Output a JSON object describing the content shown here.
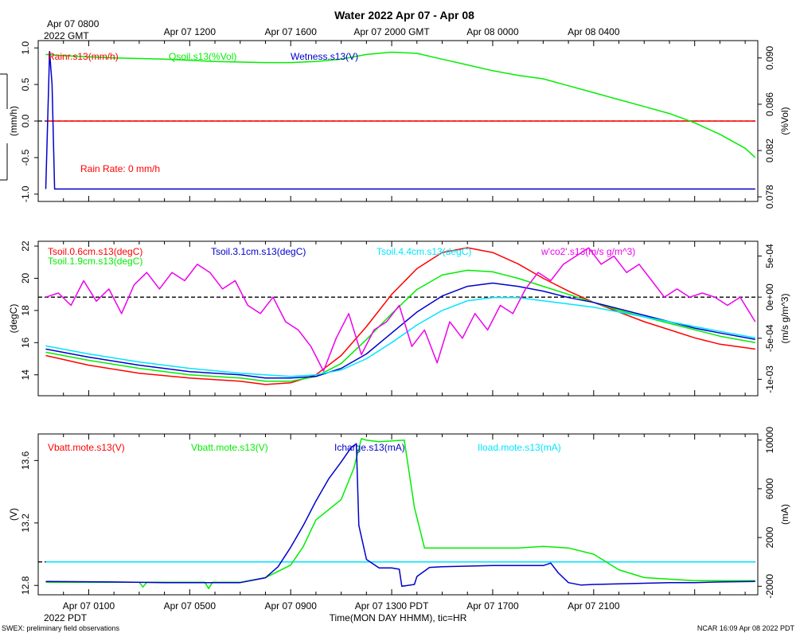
{
  "title": "Water 2022 Apr 07 - Apr 08",
  "top_axis": {
    "first_label_line1": "Apr 07 0800",
    "first_label_line2": "2022 GMT",
    "labels": [
      "Apr 07 1200",
      "Apr 07 1600",
      "Apr 07 2000 GMT",
      "Apr 08 0000",
      "Apr 08 0400"
    ]
  },
  "bottom_axis": {
    "labels": [
      "Apr 07 0100",
      "Apr 07 0500",
      "Apr 07 0900",
      "Apr 07 1300 PDT",
      "Apr 07 1700",
      "Apr 07 2100"
    ],
    "sub_label": "2022 PDT",
    "xlabel": "Time(MON DAY HHMM), tic=HR"
  },
  "footer": {
    "left": "SWEX: preliminary field observations",
    "right": "NCAR 16:09 Apr 08 2022 PDT"
  },
  "colors": {
    "red": "#ff0000",
    "green": "#00ee00",
    "blue": "#0000cc",
    "cyan": "#00e5ff",
    "magenta": "#ee00ee",
    "black": "#000000"
  },
  "chart_data": [
    {
      "type": "line",
      "name": "panel-water",
      "x_unit": "hours since Apr 07 0000 PDT",
      "xlim": [
        -1,
        27.5
      ],
      "left_axis": {
        "label": "(mm/h)",
        "ylim": [
          -1.1,
          1.1
        ],
        "ticks": [
          "1.0",
          "0.5",
          "0.0",
          "-0.5",
          "-1.0"
        ],
        "tick_values": [
          1.0,
          0.5,
          0.0,
          -0.5,
          -1.0
        ]
      },
      "right_axis": {
        "label": "(%Vol)",
        "ylim": [
          0.0776,
          0.0915
        ],
        "ticks": [
          "0.090",
          "0.086",
          "0.082",
          "0.078"
        ],
        "tick_values": [
          0.09,
          0.086,
          0.082,
          0.078
        ]
      },
      "legend": [
        "Rainr.s13(mm/h)",
        "Qsoil.s13(%Vol)",
        "Wetness.s13(V)"
      ],
      "annotation": "Rain Rate: 0 mm/h",
      "reference_line": {
        "axis": "left",
        "value": 0.0,
        "style": "dashed"
      },
      "series": [
        {
          "name": "Rainr.s13(mm/h)",
          "color": "red",
          "axis": "left",
          "x": [
            -0.7,
            27.4
          ],
          "y": [
            0.0,
            0.0
          ]
        },
        {
          "name": "Qsoil.s13(%Vol)",
          "color": "green",
          "axis": "right",
          "x": [
            -0.7,
            0,
            2,
            4,
            6,
            8,
            9,
            10,
            11,
            12,
            13,
            14,
            15,
            16,
            17,
            18,
            19,
            20,
            21,
            22,
            23,
            24,
            25,
            26,
            27,
            27.4
          ],
          "y": [
            0.0903,
            0.0902,
            0.09,
            0.0899,
            0.0897,
            0.0896,
            0.0896,
            0.0897,
            0.0899,
            0.0903,
            0.0905,
            0.0904,
            0.0899,
            0.0894,
            0.0889,
            0.0885,
            0.0882,
            0.0876,
            0.087,
            0.0864,
            0.0858,
            0.0852,
            0.0844,
            0.0834,
            0.0822,
            0.0814
          ]
        },
        {
          "name": "Wetness.s13(V)",
          "color": "blue",
          "axis": "left",
          "x": [
            -0.7,
            -0.55,
            -0.45,
            -0.35,
            0,
            27.4
          ],
          "y": [
            -0.93,
            0.95,
            0.5,
            -0.93,
            -0.93,
            -0.93
          ]
        }
      ]
    },
    {
      "type": "line",
      "name": "panel-temperature",
      "x_unit": "hours since Apr 07 0000 PDT",
      "xlim": [
        -1,
        27.5
      ],
      "left_axis": {
        "label": "(degC)",
        "ylim": [
          12.7,
          22.3
        ],
        "ticks": [
          "22",
          "20",
          "18",
          "16",
          "14"
        ],
        "tick_values": [
          22,
          20,
          18,
          16,
          14
        ]
      },
      "right_axis": {
        "label": "(m/s g/m^3)",
        "ylim": [
          -0.0012,
          0.00068
        ],
        "ticks": [
          "5e-04",
          "0e+00",
          "-5e-04",
          "-1e-03"
        ],
        "tick_values": [
          0.0005,
          0.0,
          -0.0005,
          -0.001
        ]
      },
      "legend": [
        "Tsoil.0.6cm.s13(degC)",
        "Tsoil.1.9cm.s13(degC)",
        "Tsoil.3.1cm.s13(degC)",
        "Tsoil.4.4cm.s13(degC)",
        "w'co2'.s13(m/s g/m^3)"
      ],
      "reference_line": {
        "axis": "right",
        "value": 0.0,
        "style": "dashed"
      },
      "series": [
        {
          "name": "Tsoil.0.6cm.s13(degC)",
          "color": "red",
          "axis": "left",
          "x": [
            -0.7,
            1,
            3,
            5,
            7,
            8,
            9,
            10,
            11,
            12,
            13,
            14,
            15,
            16,
            17,
            18,
            19,
            20,
            21,
            22,
            23,
            24,
            25,
            26,
            27.4
          ],
          "y": [
            15.2,
            14.6,
            14.1,
            13.8,
            13.6,
            13.4,
            13.5,
            14.0,
            15.2,
            17.0,
            19.0,
            20.6,
            21.6,
            21.9,
            21.6,
            20.9,
            20.0,
            19.2,
            18.5,
            17.9,
            17.3,
            16.8,
            16.3,
            15.9,
            15.6
          ]
        },
        {
          "name": "Tsoil.1.9cm.s13(degC)",
          "color": "green",
          "axis": "left",
          "x": [
            -0.7,
            1,
            3,
            5,
            7,
            8,
            9,
            10,
            11,
            12,
            13,
            14,
            15,
            16,
            17,
            18,
            19,
            20,
            21,
            22,
            23,
            24,
            25,
            26,
            27.4
          ],
          "y": [
            15.4,
            14.9,
            14.4,
            14.0,
            13.8,
            13.6,
            13.6,
            13.9,
            14.7,
            16.2,
            17.8,
            19.3,
            20.2,
            20.5,
            20.4,
            20.0,
            19.5,
            19.0,
            18.5,
            18.0,
            17.6,
            17.2,
            16.8,
            16.4,
            16.0
          ]
        },
        {
          "name": "Tsoil.3.1cm.s13(degC)",
          "color": "blue",
          "axis": "left",
          "x": [
            -0.7,
            1,
            3,
            5,
            7,
            8,
            9,
            10,
            11,
            12,
            13,
            14,
            15,
            16,
            17,
            18,
            19,
            20,
            21,
            22,
            23,
            24,
            25,
            26,
            27.4
          ],
          "y": [
            15.6,
            15.1,
            14.6,
            14.2,
            14.0,
            13.8,
            13.8,
            13.9,
            14.4,
            15.3,
            16.6,
            17.9,
            18.9,
            19.5,
            19.7,
            19.5,
            19.2,
            18.8,
            18.5,
            18.1,
            17.7,
            17.3,
            16.9,
            16.6,
            16.2
          ]
        },
        {
          "name": "Tsoil.4.4cm.s13(degC)",
          "color": "cyan",
          "axis": "left",
          "x": [
            -0.7,
            1,
            3,
            5,
            7,
            8,
            9,
            10,
            11,
            12,
            13,
            14,
            15,
            16,
            17,
            18,
            19,
            20,
            21,
            22,
            23,
            24,
            25,
            26,
            27.4
          ],
          "y": [
            15.8,
            15.3,
            14.8,
            14.4,
            14.1,
            14.0,
            13.9,
            14.0,
            14.3,
            15.0,
            16.0,
            17.1,
            18.0,
            18.6,
            18.8,
            18.8,
            18.6,
            18.4,
            18.2,
            17.9,
            17.6,
            17.3,
            17.0,
            16.7,
            16.3
          ]
        },
        {
          "name": "w'co2'.s13(m/s g/m^3)",
          "color": "magenta",
          "axis": "right",
          "x": [
            -0.7,
            -0.2,
            0.3,
            0.8,
            1.3,
            1.8,
            2.3,
            2.8,
            3.3,
            3.8,
            4.3,
            4.8,
            5.3,
            5.8,
            6.3,
            6.8,
            7.3,
            7.8,
            8.3,
            8.8,
            9.3,
            9.8,
            10.3,
            10.8,
            11.3,
            11.8,
            12.3,
            12.8,
            13.3,
            13.8,
            14.3,
            14.8,
            15.3,
            15.8,
            16.3,
            16.8,
            17.3,
            17.8,
            18.3,
            18.8,
            19.3,
            19.8,
            20.3,
            20.8,
            21.3,
            21.8,
            22.3,
            22.8,
            23.3,
            23.8,
            24.3,
            24.8,
            25.3,
            25.8,
            26.3,
            26.8,
            27.4
          ],
          "y": [
            0.0,
            5e-05,
            -0.0001,
            0.0002,
            -5e-05,
            0.0001,
            -0.0002,
            0.00015,
            0.0003,
            0.0001,
            0.0003,
            0.0002,
            0.0004,
            0.0003,
            0.0001,
            0.0002,
            -0.0001,
            -0.0002,
            0.0,
            -0.0003,
            -0.0004,
            -0.0006,
            -0.0009,
            -0.0005,
            -0.0002,
            -0.0007,
            -0.0004,
            -0.0003,
            -0.0001,
            -0.0006,
            -0.0004,
            -0.0008,
            -0.0003,
            -0.0005,
            -0.0002,
            -0.0004,
            -0.0001,
            -0.0002,
            0.0001,
            0.0003,
            0.0002,
            0.0004,
            0.0005,
            0.0006,
            0.0004,
            0.0005,
            0.0003,
            0.0004,
            0.0002,
            0.0,
            0.0001,
            0.0,
            5e-05,
            0.0,
            -0.0001,
            0.0,
            -0.0003
          ]
        }
      ]
    },
    {
      "type": "line",
      "name": "panel-power",
      "x_unit": "hours since Apr 07 0000 PDT",
      "xlim": [
        -1,
        27.5
      ],
      "left_axis": {
        "label": "(V)",
        "ylim": [
          12.74,
          13.77
        ],
        "ticks": [
          "13.6",
          "13.2",
          "12.8"
        ],
        "tick_values": [
          13.6,
          13.2,
          12.8
        ]
      },
      "right_axis": {
        "label": "(mA)",
        "ylim": [
          -2700,
          10500
        ],
        "ticks": [
          "10000",
          "6000",
          "2000",
          "-2000"
        ],
        "tick_values": [
          10000,
          6000,
          2000,
          -2000
        ]
      },
      "legend": [
        "Vbatt.mote.s13(V)",
        "Vbatt.mote.s13(V)",
        "Icharge.s13(mA)",
        "Iload.mote.s13(mA)"
      ],
      "reference_line": {
        "axis": "right",
        "value": 0,
        "style": "dashed"
      },
      "series": [
        {
          "name": "Iload.mote.s13(mA)",
          "color": "cyan",
          "axis": "right",
          "x": [
            -0.7,
            27.4
          ],
          "y": [
            0,
            0
          ]
        },
        {
          "name": "Vbatt.mote.s13(V)",
          "color": "green",
          "axis": "left",
          "x": [
            -0.7,
            2,
            3,
            3.15,
            3.3,
            5,
            5.6,
            5.75,
            5.9,
            7,
            8,
            9,
            9.5,
            10,
            11,
            11.5,
            11.8,
            12,
            12.5,
            13.5,
            13.9,
            14.3,
            15,
            15.9,
            16.5,
            17,
            18,
            19,
            20,
            21,
            22,
            23,
            24,
            25,
            26,
            27.4
          ],
          "y": [
            12.82,
            12.82,
            12.82,
            12.79,
            12.82,
            12.82,
            12.82,
            12.78,
            12.82,
            12.82,
            12.85,
            12.93,
            13.05,
            13.22,
            13.35,
            13.55,
            13.74,
            13.73,
            13.72,
            13.73,
            13.3,
            13.04,
            13.04,
            13.04,
            13.04,
            13.04,
            13.04,
            13.05,
            13.04,
            13.0,
            12.9,
            12.85,
            12.84,
            12.83,
            12.83,
            12.83
          ]
        },
        {
          "name": "Icharge.s13(mA)",
          "color": "blue",
          "axis": "right",
          "x": [
            -0.7,
            2,
            4,
            6,
            7,
            8,
            8.5,
            9,
            9.5,
            10,
            10.5,
            11,
            11.4,
            11.6,
            11.7,
            12.0,
            12.5,
            13.0,
            13.3,
            13.4,
            13.9,
            14.0,
            14.5,
            15,
            16,
            17,
            18,
            19,
            19.3,
            19.6,
            20,
            20.5,
            21,
            22,
            23,
            24,
            25,
            26,
            27.4
          ],
          "y": [
            -1600,
            -1650,
            -1700,
            -1700,
            -1700,
            -1300,
            -400,
            1200,
            3000,
            5000,
            6800,
            8200,
            9400,
            9700,
            3000,
            200,
            -500,
            -500,
            -600,
            -2000,
            -1850,
            -1200,
            -450,
            -400,
            -350,
            -300,
            -300,
            -300,
            -100,
            -900,
            -1700,
            -1900,
            -1850,
            -1800,
            -1750,
            -1700,
            -1700,
            -1650,
            -1600
          ]
        }
      ]
    }
  ]
}
